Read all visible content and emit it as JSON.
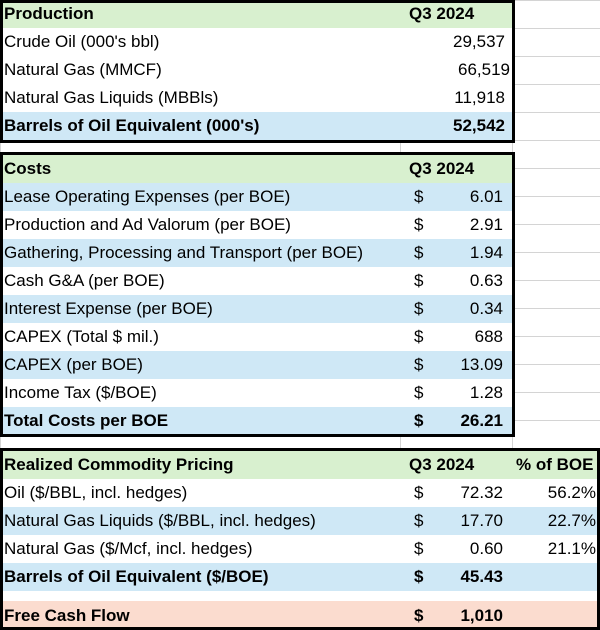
{
  "production": {
    "header": {
      "label": "Production",
      "period": "Q3 2024"
    },
    "rows": [
      {
        "label": "Crude Oil (000's bbl)",
        "value": "29,537"
      },
      {
        "label": "Natural Gas (MMCF)",
        "value": "66,519"
      },
      {
        "label": "Natural Gas Liquids (MBBls)",
        "value": "11,918"
      }
    ],
    "total": {
      "label": "Barrels of Oil Equivalent (000's)",
      "value": "52,542"
    }
  },
  "costs": {
    "header": {
      "label": "Costs",
      "period": "Q3 2024"
    },
    "rows": [
      {
        "label": "Lease Operating Expenses (per BOE)",
        "currency": "$",
        "value": "6.01"
      },
      {
        "label": "Production and Ad Valorum (per BOE)",
        "currency": "$",
        "value": "2.91"
      },
      {
        "label": "Gathering, Processing and Transport (per BOE)",
        "currency": "$",
        "value": "1.94"
      },
      {
        "label": "Cash G&A (per BOE)",
        "currency": "$",
        "value": "0.63"
      },
      {
        "label": "Interest Expense (per BOE)",
        "currency": "$",
        "value": "0.34"
      },
      {
        "label": "CAPEX (Total $ mil.)",
        "currency": "$",
        "value": "688"
      },
      {
        "label": "CAPEX (per BOE)",
        "currency": "$",
        "value": "13.09"
      },
      {
        "label": "Income Tax ($/BOE)",
        "currency": "$",
        "value": "1.28"
      }
    ],
    "total": {
      "label": "Total Costs per BOE",
      "currency": "$",
      "value": "26.21"
    }
  },
  "pricing": {
    "header": {
      "label": "Realized Commodity Pricing",
      "period": "Q3 2024",
      "share": "% of BOE"
    },
    "rows": [
      {
        "label": "Oil ($/BBL, incl. hedges)",
        "currency": "$",
        "value": "72.32",
        "share": "56.2%"
      },
      {
        "label": "Natural Gas Liquids ($/BBL, incl. hedges)",
        "currency": "$",
        "value": "17.70",
        "share": "22.7%"
      },
      {
        "label": "Natural Gas ($/Mcf, incl. hedges)",
        "currency": "$",
        "value": "0.60",
        "share": "21.1%"
      }
    ],
    "total": {
      "label": "Barrels of Oil Equivalent ($/BOE)",
      "currency": "$",
      "value": "45.43"
    }
  },
  "free_cash_flow": {
    "label": "Free Cash Flow",
    "currency": "$",
    "value": "1,010"
  }
}
